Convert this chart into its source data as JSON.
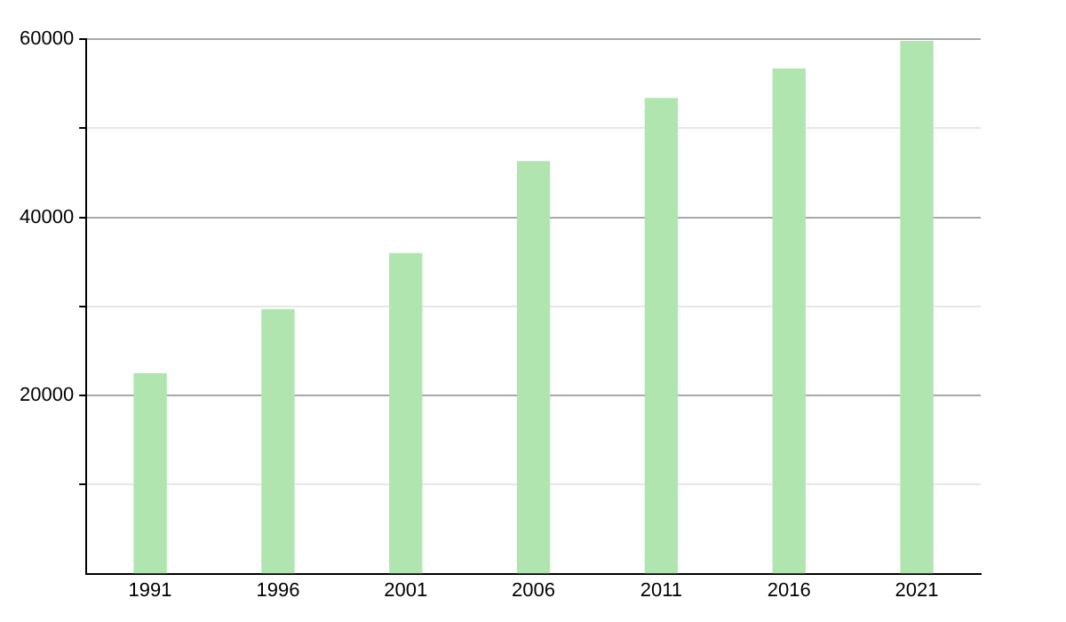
{
  "chart_data": {
    "type": "bar",
    "categories": [
      "1991",
      "1996",
      "2001",
      "2006",
      "2011",
      "2016",
      "2021"
    ],
    "values": [
      22500,
      29700,
      36000,
      46300,
      53400,
      56700,
      59800
    ],
    "color": "#b0e5b0",
    "ylim": [
      0,
      60000
    ],
    "yticks": [
      {
        "value": 10000,
        "label": null
      },
      20000,
      {
        "value": 30000,
        "label": null
      },
      40000,
      {
        "value": 50000,
        "label": null
      },
      60000
    ],
    "grid": "y"
  }
}
